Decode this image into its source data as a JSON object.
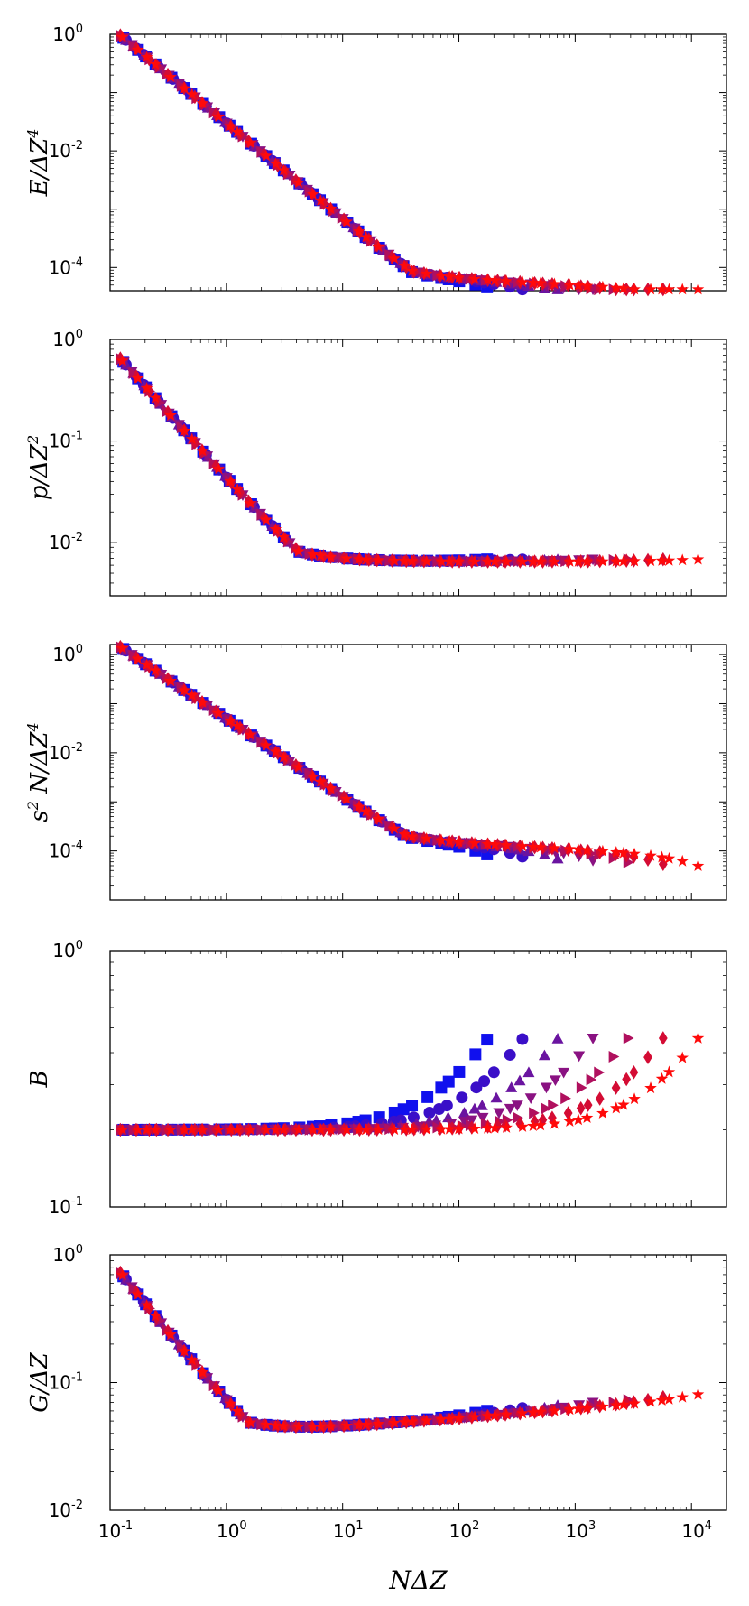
{
  "chart_data": [
    {
      "type": "scatter",
      "ylabel": "E/ΔZ⁴",
      "ylabel_base": "E/ΔZ",
      "ylabel_sup": "4",
      "yscale": "log",
      "ylim": [
        4e-05,
        1
      ],
      "ytick_labels": [
        {
          "base": "10",
          "exp": "0"
        },
        {
          "base": "10",
          "exp": "-2"
        },
        {
          "base": "10",
          "exp": "-4"
        }
      ],
      "ytick_values": [
        1,
        0.01,
        0.0001
      ],
      "shape": {
        "short": {
          "amp": 0.87,
          "ref": 0.13,
          "slope": 1.65
        },
        "plateau": 0.0001,
        "plateau_slope": -0.1,
        "taper": {
          "amp": 0.3,
          "dir": -1
        }
      }
    },
    {
      "type": "scatter",
      "ylabel": "p/ΔZ²",
      "ylabel_base": "p/ΔZ",
      "ylabel_sup": "2",
      "yscale": "log",
      "ylim": [
        0.003,
        1
      ],
      "ytick_labels": [
        {
          "base": "10",
          "exp": "0"
        },
        {
          "base": "10",
          "exp": "-1"
        },
        {
          "base": "10",
          "exp": "-2"
        }
      ],
      "ytick_values": [
        1,
        0.1,
        0.01
      ],
      "shape": {
        "short": {
          "amp": 0.6,
          "ref": 0.13,
          "slope": 1.3
        },
        "plateau": 0.0065,
        "plateau_slope": 0,
        "taper": {
          "amp": 0.06,
          "dir": 1
        }
      }
    },
    {
      "type": "scatter",
      "ylabel": "s² N/ΔZ⁴",
      "ylabel_pre": "s",
      "ylabel_pre_sup": "2",
      "ylabel_base": " N/ΔZ",
      "ylabel_sup": "4",
      "yscale": "log",
      "ylim": [
        1e-05,
        1.6
      ],
      "ytick_labels": [
        {
          "base": "10",
          "exp": "0"
        },
        {
          "base": "10",
          "exp": "-2"
        },
        {
          "base": "10",
          "exp": "-4"
        }
      ],
      "ytick_values": [
        1,
        0.01,
        0.0001
      ],
      "shape": {
        "short": {
          "amp": 1.3,
          "ref": 0.13,
          "slope": 1.6
        },
        "plateau": 0.00025,
        "plateau_slope": -0.12,
        "taper": {
          "amp": 0.45,
          "dir": -1
        }
      }
    },
    {
      "type": "scatter",
      "ylabel": "B",
      "ylabel_base": "B",
      "yscale": "log",
      "ylim": [
        0.1,
        1
      ],
      "ytick_labels": [
        {
          "base": "10",
          "exp": "0"
        },
        {
          "base": "10",
          "exp": "-1"
        }
      ],
      "ytick_values": [
        1,
        0.1
      ],
      "shape": {
        "binder": true,
        "low": 0.2,
        "high": 0.49
      }
    },
    {
      "type": "scatter",
      "ylabel": "G/ΔZ",
      "ylabel_base": "G/ΔZ",
      "yscale": "log",
      "ylim": [
        0.01,
        1
      ],
      "ytick_labels": [
        {
          "base": "10",
          "exp": "0"
        },
        {
          "base": "10",
          "exp": "-1"
        },
        {
          "base": "10",
          "exp": "-2"
        }
      ],
      "ytick_values": [
        1,
        0.1,
        0.01
      ],
      "shape": {
        "short": {
          "amp": 0.67,
          "ref": 0.13,
          "slope": 1.15
        },
        "plateau": 0.038,
        "plateau_slope": 0.07,
        "taper": {
          "amp": 0.12,
          "dir": 1
        }
      }
    }
  ],
  "shared_x": {
    "xlabel": "NΔZ",
    "xlabel_base": "NΔZ",
    "xscale": "log",
    "xlim": [
      0.1,
      20000
    ],
    "xtick_labels": [
      {
        "base": "10",
        "exp": "-1"
      },
      {
        "base": "10",
        "exp": "0"
      },
      {
        "base": "10",
        "exp": "1"
      },
      {
        "base": "10",
        "exp": "2"
      },
      {
        "base": "10",
        "exp": "3"
      },
      {
        "base": "10",
        "exp": "4"
      }
    ],
    "xtick_values": [
      0.1,
      1,
      10,
      100,
      1000,
      10000
    ]
  },
  "series": [
    {
      "name": "series-1",
      "marker": "square",
      "color": "#1010ee",
      "x_max": 200
    },
    {
      "name": "series-2",
      "marker": "circle",
      "color": "#3a0fc8",
      "x_max": 400
    },
    {
      "name": "series-3",
      "marker": "triangle-up",
      "color": "#6a14a0",
      "x_max": 800
    },
    {
      "name": "series-4",
      "marker": "triangle-down",
      "color": "#8a1282",
      "x_max": 1600
    },
    {
      "name": "series-5",
      "marker": "triangle-right",
      "color": "#b0105e",
      "x_max": 3200
    },
    {
      "name": "series-6",
      "marker": "diamond",
      "color": "#d40c34",
      "x_max": 6400
    },
    {
      "name": "series-7",
      "marker": "star",
      "color": "#ff0a0a",
      "x_max": 12800
    }
  ],
  "x_start": 0.13,
  "x_ratio": 1.26
}
